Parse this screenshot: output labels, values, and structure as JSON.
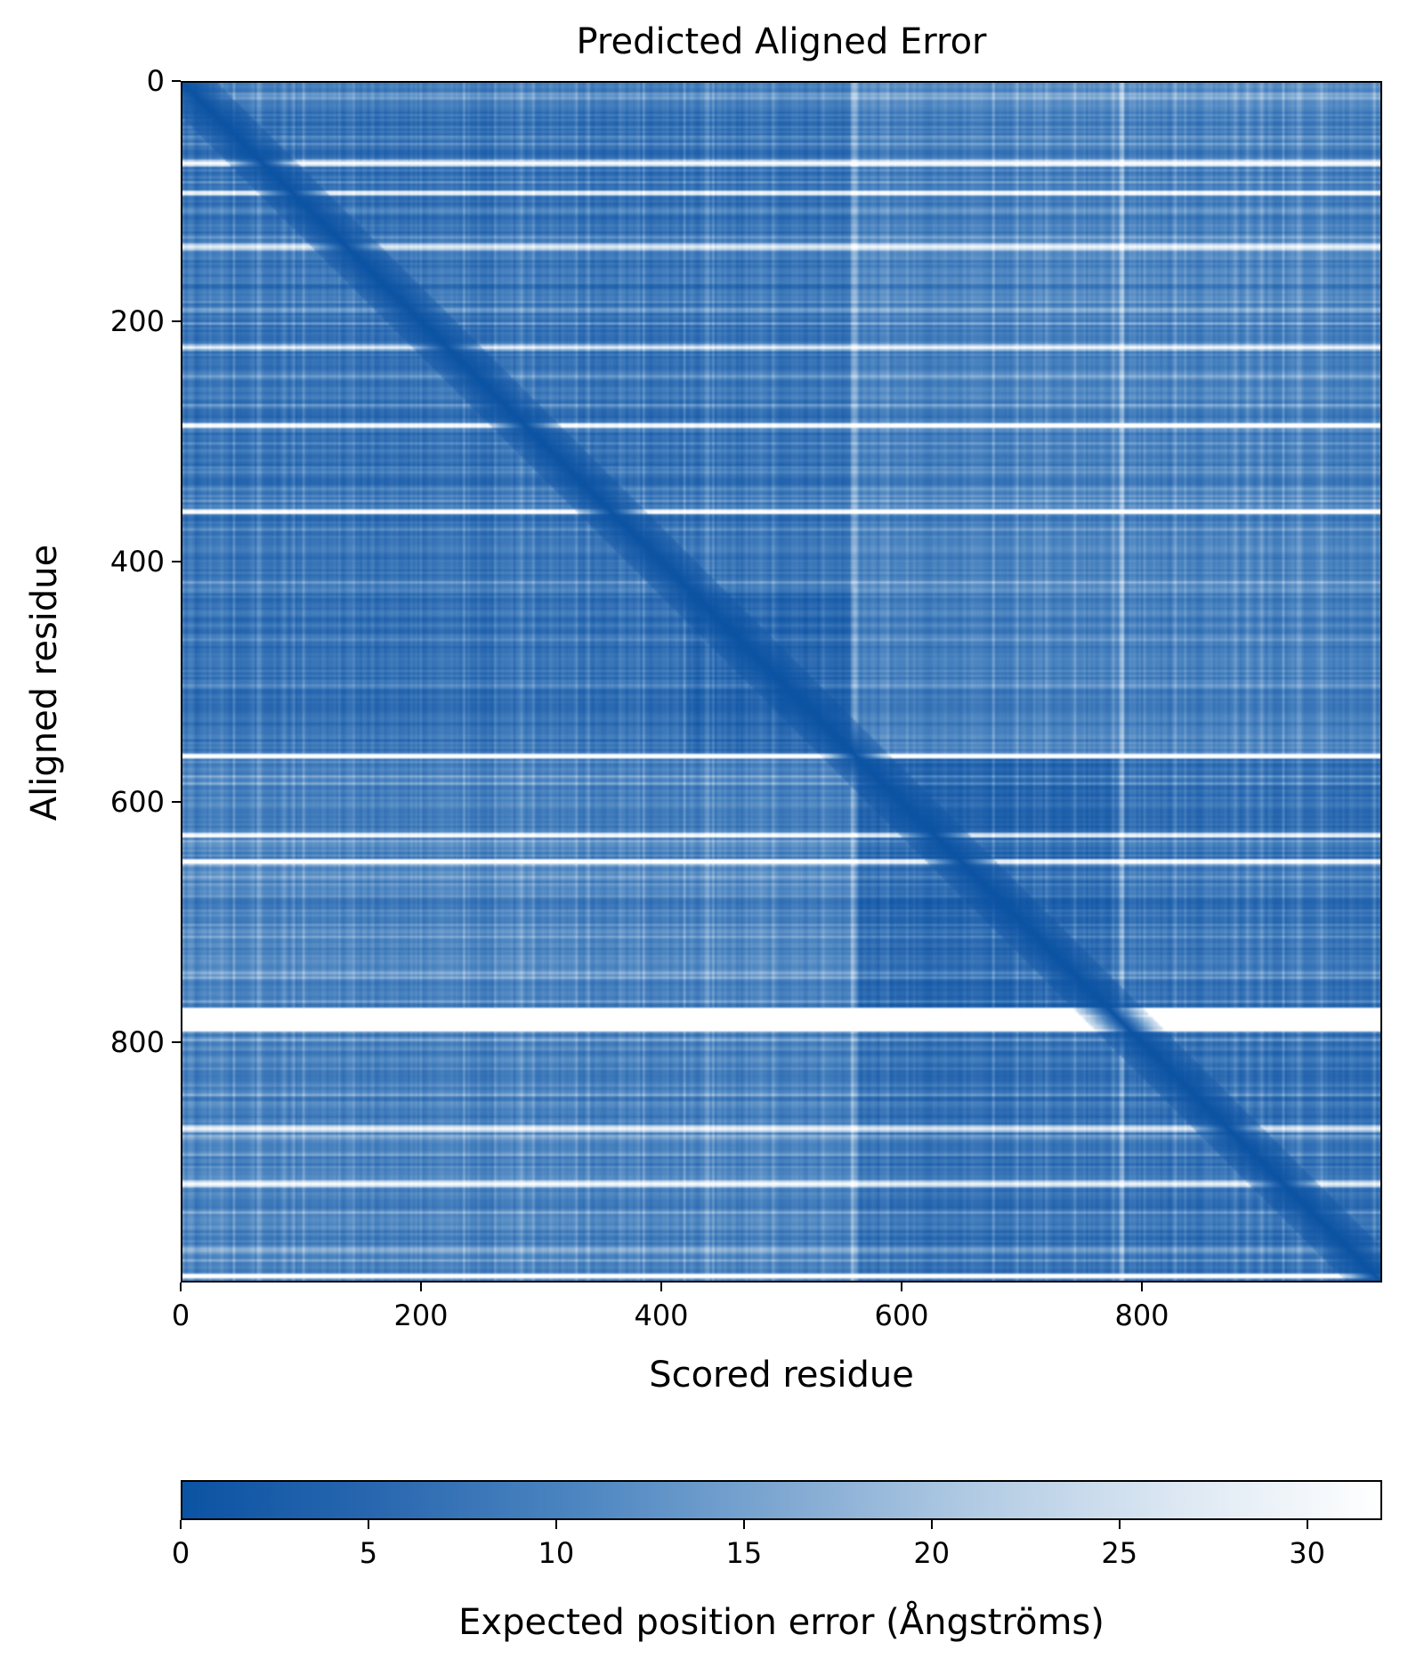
{
  "chart_data": {
    "type": "heatmap",
    "title": "Predicted Aligned Error",
    "xlabel": "Scored residue",
    "ylabel": "Aligned residue",
    "xlim": [
      0,
      1000
    ],
    "ylim": [
      1000,
      0
    ],
    "x_ticks": [
      0,
      200,
      400,
      600,
      800
    ],
    "y_ticks": [
      0,
      200,
      400,
      600,
      800
    ],
    "colorbar": {
      "label": "Expected position error (Ångströms)",
      "range": [
        0,
        32
      ],
      "ticks": [
        0,
        5,
        10,
        15,
        20,
        25,
        30
      ],
      "colors": [
        "#0b53a3",
        "#2a68b0",
        "#4d86c1",
        "#7fa8d2",
        "#b3cce4",
        "#dde8f3",
        "#ffffff"
      ],
      "orientation": "horizontal",
      "placement": "bottom"
    },
    "domains": [
      [
        0,
        560
      ],
      [
        560,
        1000
      ]
    ],
    "high_error_rows": [
      {
        "residue": 66,
        "error": 26
      },
      {
        "residue": 91,
        "error": 20
      },
      {
        "residue": 136,
        "error": 22
      },
      {
        "residue": 220,
        "error": 18
      },
      {
        "residue": 285,
        "error": 24
      },
      {
        "residue": 357,
        "error": 24
      },
      {
        "residue": 561,
        "error": 30
      },
      {
        "residue": 627,
        "error": 20
      },
      {
        "residue": 649,
        "error": 24
      },
      {
        "residue": 781,
        "error": 31
      },
      {
        "residue": 872,
        "error": 20
      },
      {
        "residue": 918,
        "error": 24
      },
      {
        "residue": 995,
        "error": 28
      }
    ],
    "high_error_columns": [
      {
        "residue": 783,
        "error": 22
      },
      {
        "residue": 560,
        "error": 16
      }
    ]
  }
}
